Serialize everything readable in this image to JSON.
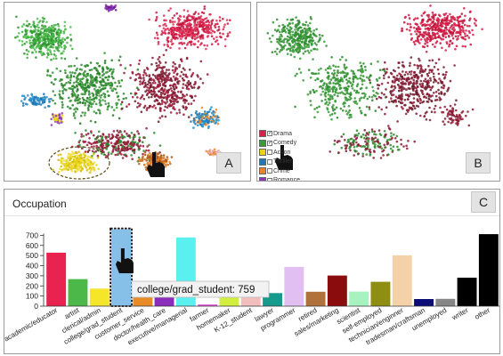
{
  "panel_a": {
    "label": "A"
  },
  "panel_b": {
    "label": "B",
    "legend": [
      {
        "name": "Drama",
        "color": "#d81f4a",
        "checked": true
      },
      {
        "name": "Comedy",
        "color": "#3a9b3a",
        "checked": true
      },
      {
        "name": "Action",
        "color": "#e8d21a",
        "checked": false
      },
      {
        "name": "Thriller",
        "color": "#1f77b4",
        "checked": false
      },
      {
        "name": "Crime",
        "color": "#e8842a",
        "checked": false
      },
      {
        "name": "Romance",
        "color": "#8e35b5",
        "checked": false
      }
    ]
  },
  "panel_c": {
    "title": "Occupation",
    "label": "C",
    "tooltip": "college/grad_student: 759"
  },
  "chart_data": {
    "type": "bar",
    "title": "Occupation",
    "xlabel": "",
    "ylabel": "",
    "ylim": [
      0,
      800
    ],
    "yticks": [
      0,
      100,
      200,
      300,
      400,
      500,
      600,
      700
    ],
    "categories": [
      "academic/educator",
      "artist",
      "clerical/admin",
      "college/grad_student",
      "customer_service",
      "doctor/health_care",
      "executive/managerial",
      "farmer",
      "homemaker",
      "K-12_student",
      "lawyer",
      "programmer",
      "retired",
      "sales/marketing",
      "scientist",
      "self-employed",
      "technician/enginner",
      "tradesman/craftsman",
      "unemployed",
      "writer",
      "other"
    ],
    "values": [
      528,
      267,
      173,
      759,
      112,
      236,
      679,
      17,
      92,
      195,
      129,
      388,
      142,
      302,
      144,
      241,
      502,
      70,
      72,
      281,
      711
    ],
    "colors": [
      "#e8234f",
      "#4cb84a",
      "#f5e62a",
      "#86c0e8",
      "#e88a25",
      "#8a2dbb",
      "#5af0f0",
      "#e256d8",
      "#d2ef3f",
      "#f2bdbd",
      "#159a8c",
      "#e2bff2",
      "#b0713a",
      "#8b0c0c",
      "#a8f2bf",
      "#8e8e12",
      "#f5d1a8",
      "#0c0c78",
      "#868686",
      "#000000",
      "#000000"
    ],
    "highlighted": "college/grad_student"
  }
}
